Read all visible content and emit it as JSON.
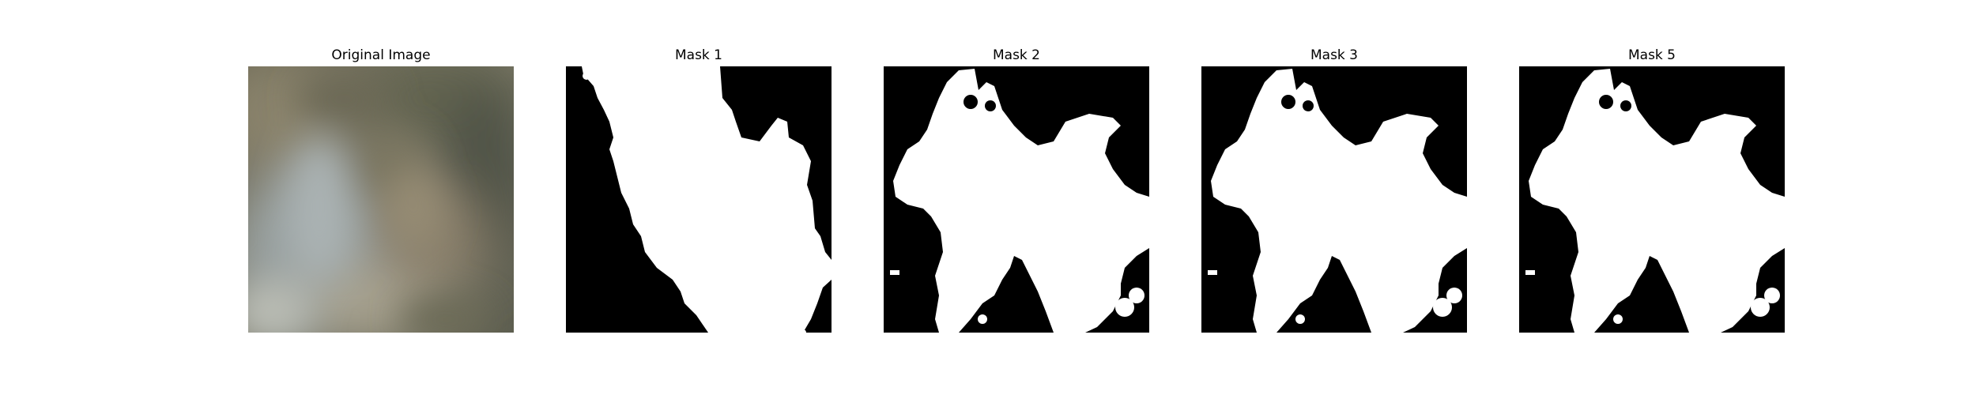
{
  "figure": {
    "panels": [
      {
        "title": "Original Image"
      },
      {
        "title": "Mask 1"
      },
      {
        "title": "Mask 2"
      },
      {
        "title": "Mask 3"
      },
      {
        "title": "Mask 5"
      }
    ]
  },
  "colors": {
    "background": "#ffffff",
    "mask_on": "#ffffff",
    "mask_off": "#000000"
  }
}
